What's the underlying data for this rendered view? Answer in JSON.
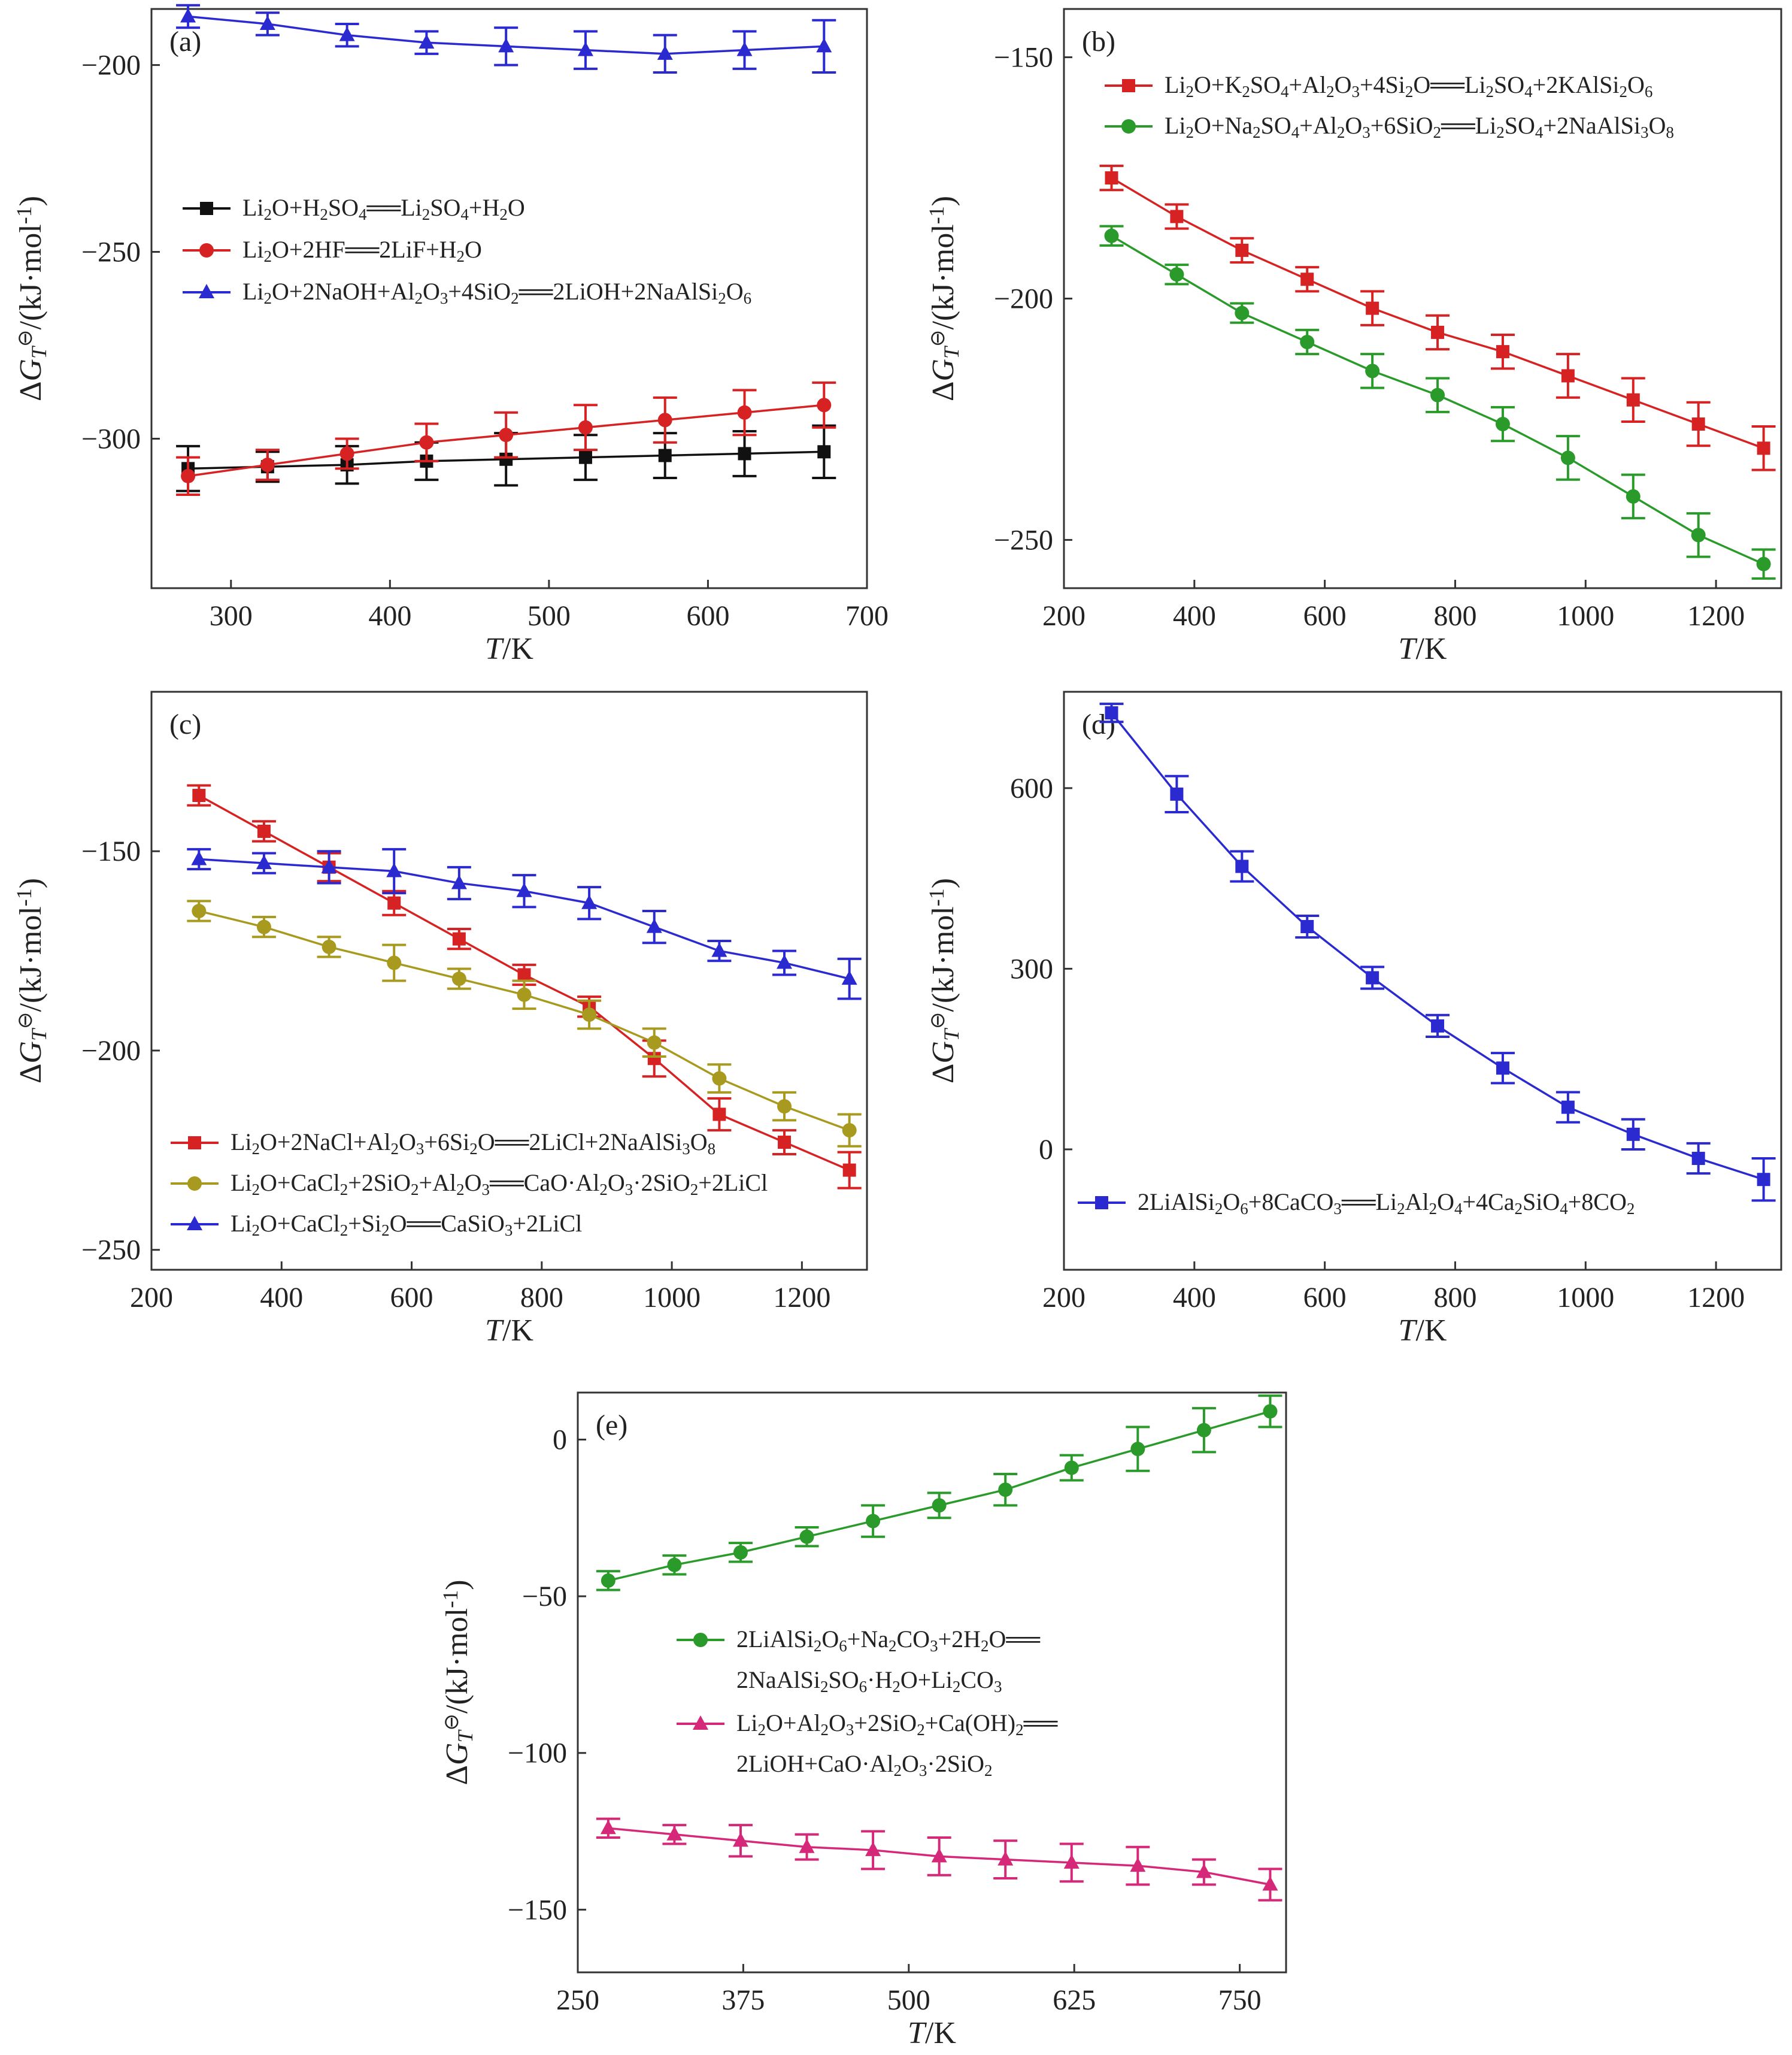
{
  "chart_data": [
    {
      "type": "line",
      "panel_label": "(a)",
      "xlabel": "T/K",
      "ylabel": "ΔG_T^⊖/(kJ·mol⁻¹)",
      "xlim": [
        250,
        700
      ],
      "ylim": [
        -340,
        -185
      ],
      "xticks": [
        300,
        400,
        500,
        600,
        700
      ],
      "yticks": [
        -200,
        -250,
        -300
      ],
      "legend_position": "middle-left",
      "series": [
        {
          "name": "Li₂O+H₂SO₄══Li₂SO₄+H₂O",
          "color": "#111111",
          "marker": "square",
          "x": [
            273,
            323,
            373,
            423,
            473,
            523,
            573,
            623,
            673
          ],
          "y": [
            -308,
            -307.5,
            -307,
            -306,
            -305.5,
            -305,
            -304.5,
            -304,
            -303.5
          ],
          "err": [
            6,
            4,
            5,
            5,
            7,
            6,
            6,
            6,
            7
          ]
        },
        {
          "name": "Li₂O+2HF══2LiF+H₂O",
          "color": "#d62222",
          "marker": "circle",
          "x": [
            273,
            323,
            373,
            423,
            473,
            523,
            573,
            623,
            673
          ],
          "y": [
            -310,
            -307,
            -304,
            -301,
            -299,
            -297,
            -295,
            -293,
            -291
          ],
          "err": [
            5,
            4,
            4,
            5,
            6,
            6,
            6,
            6,
            6
          ]
        },
        {
          "name": "Li₂O+2NaOH+Al₂O₃+4SiO₂══2LiOH+2NaAlSi₂O₆",
          "color": "#2a2ad0",
          "marker": "triangle",
          "x": [
            273,
            323,
            373,
            423,
            473,
            523,
            573,
            623,
            673
          ],
          "y": [
            -187,
            -189,
            -192,
            -194,
            -195,
            -196,
            -197,
            -196,
            -195
          ],
          "err": [
            3,
            3,
            3,
            3,
            5,
            5,
            5,
            5,
            7
          ]
        }
      ]
    },
    {
      "type": "line",
      "panel_label": "(b)",
      "xlabel": "T/K",
      "ylabel": "ΔG_T^⊖/(kJ·mol⁻¹)",
      "xlim": [
        200,
        1300
      ],
      "ylim": [
        -260,
        -140
      ],
      "xticks": [
        200,
        400,
        600,
        800,
        1000,
        1200
      ],
      "yticks": [
        -150,
        -200,
        -250
      ],
      "legend_position": "top",
      "series": [
        {
          "name": "Li₂O+K₂SO₄+Al₂O₃+4Si₂O══Li₂SO₄+2KAlSi₂O₆",
          "color": "#d62222",
          "marker": "square",
          "x": [
            273,
            373,
            473,
            573,
            673,
            773,
            873,
            973,
            1073,
            1173,
            1273
          ],
          "y": [
            -175,
            -183,
            -190,
            -196,
            -202,
            -207,
            -211,
            -216,
            -221,
            -226,
            -231
          ],
          "err": [
            2.5,
            2.5,
            2.5,
            2.5,
            3.5,
            3.5,
            3.5,
            4.5,
            4.5,
            4.5,
            4.5
          ]
        },
        {
          "name": "Li₂O+Na₂SO₄+Al₂O₃+6SiO₂══Li₂SO₄+2NaAlSi₃O₈",
          "color": "#2a9a2a",
          "marker": "circle",
          "x": [
            273,
            373,
            473,
            573,
            673,
            773,
            873,
            973,
            1073,
            1173,
            1273
          ],
          "y": [
            -187,
            -195,
            -203,
            -209,
            -215,
            -220,
            -226,
            -233,
            -241,
            -249,
            -255
          ],
          "err": [
            2,
            2,
            2,
            2.5,
            3.5,
            3.5,
            3.5,
            4.5,
            4.5,
            4.5,
            3
          ]
        }
      ]
    },
    {
      "type": "line",
      "panel_label": "(c)",
      "xlabel": "T/K",
      "ylabel": "ΔG_T^⊖/(kJ·mol⁻¹)",
      "xlim": [
        200,
        1300
      ],
      "ylim": [
        -255,
        -110
      ],
      "xticks": [
        200,
        400,
        600,
        800,
        1000,
        1200
      ],
      "yticks": [
        -150,
        -200,
        -250
      ],
      "legend_position": "bottom-left",
      "series": [
        {
          "name": "Li₂O+2NaCl+Al₂O₃+6Si₂O══2LiCl+2NaAlSi₃O₈",
          "color": "#d62222",
          "marker": "square",
          "x": [
            273,
            373,
            473,
            573,
            673,
            773,
            873,
            973,
            1073,
            1173,
            1273
          ],
          "y": [
            -136,
            -145,
            -154,
            -163,
            -172,
            -181,
            -189,
            -202,
            -216,
            -223,
            -230
          ],
          "err": [
            2.5,
            2.5,
            3.5,
            3,
            2.5,
            2.5,
            2.5,
            4.5,
            4,
            3,
            4.5
          ]
        },
        {
          "name": "Li₂O+CaCl₂+2SiO₂+Al₂O₃══CaO·Al₂O₃·2SiO₂+2LiCl",
          "color": "#a89a1e",
          "marker": "circle",
          "x": [
            273,
            373,
            473,
            573,
            673,
            773,
            873,
            973,
            1073,
            1173,
            1273
          ],
          "y": [
            -165,
            -169,
            -174,
            -178,
            -182,
            -186,
            -191,
            -198,
            -207,
            -214,
            -220
          ],
          "err": [
            2.5,
            2.5,
            2.5,
            4.5,
            2.5,
            3.5,
            3.5,
            3.5,
            3.5,
            3.5,
            4
          ]
        },
        {
          "name": "Li₂O+CaCl₂+Si₂O══CaSiO₃+2LiCl",
          "color": "#2a2ad0",
          "marker": "triangle",
          "x": [
            273,
            373,
            473,
            573,
            673,
            773,
            873,
            973,
            1073,
            1173,
            1273
          ],
          "y": [
            -152,
            -153,
            -154,
            -155,
            -158,
            -160,
            -163,
            -169,
            -175,
            -178,
            -182
          ],
          "err": [
            2.5,
            2.5,
            4,
            5.5,
            4,
            4,
            4,
            4,
            2.5,
            3,
            5
          ]
        }
      ]
    },
    {
      "type": "line",
      "panel_label": "(d)",
      "xlabel": "T/K",
      "ylabel": "ΔG_T^⊖/(kJ·mol⁻¹)",
      "xlim": [
        200,
        1300
      ],
      "ylim": [
        -200,
        760
      ],
      "xticks": [
        200,
        400,
        600,
        800,
        1000,
        1200
      ],
      "yticks": [
        600,
        300,
        0
      ],
      "legend_position": "bottom-left",
      "series": [
        {
          "name": "2LiAlSi₂O₆+8CaCO₃══Li₂Al₂O₄+4Ca₂SiO₄+8CO₂",
          "color": "#2a2ad0",
          "marker": "square",
          "x": [
            273,
            373,
            473,
            573,
            673,
            773,
            873,
            973,
            1073,
            1173,
            1273
          ],
          "y": [
            725,
            590,
            470,
            370,
            285,
            205,
            135,
            70,
            25,
            -15,
            -50
          ],
          "err": [
            15,
            30,
            25,
            18,
            18,
            18,
            25,
            25,
            25,
            25,
            35
          ]
        }
      ]
    },
    {
      "type": "line",
      "panel_label": "(e)",
      "xlabel": "T/K",
      "ylabel": "ΔG_T^⊖/(kJ·mol⁻¹)",
      "xlim": [
        250,
        785
      ],
      "ylim": [
        -170,
        15
      ],
      "xticks": [
        250,
        375,
        500,
        625,
        750
      ],
      "yticks": [
        0,
        -50,
        -100,
        -150
      ],
      "legend_position": "middle",
      "series": [
        {
          "name_line1": "2LiAlSi₂O₆+Na₂CO₃+2H₂O══",
          "name_line2": "2NaAlSi₂SO₆·H₂O+Li₂CO₃",
          "color": "#2a9a2a",
          "marker": "circle",
          "x": [
            273,
            323,
            373,
            423,
            473,
            523,
            573,
            623,
            673,
            723,
            773
          ],
          "y": [
            -45,
            -40,
            -36,
            -31,
            -26,
            -21,
            -16,
            -9,
            -3,
            3,
            9
          ],
          "err": [
            3,
            3,
            3,
            3,
            5,
            4,
            5,
            4,
            7,
            7,
            5
          ]
        },
        {
          "name_line1": "Li₂O+Al₂O₃+2SiO₂+Ca(OH)₂══",
          "name_line2": "2LiOH+CaO·Al₂O₃·2SiO₂",
          "color": "#d62878",
          "marker": "triangle",
          "x": [
            273,
            323,
            373,
            423,
            473,
            523,
            573,
            623,
            673,
            723,
            773
          ],
          "y": [
            -124,
            -126,
            -128,
            -130,
            -131,
            -133,
            -134,
            -135,
            -136,
            -138,
            -142
          ],
          "err": [
            3,
            3,
            5,
            4,
            6,
            6,
            6,
            6,
            6,
            4,
            5
          ]
        }
      ]
    }
  ]
}
